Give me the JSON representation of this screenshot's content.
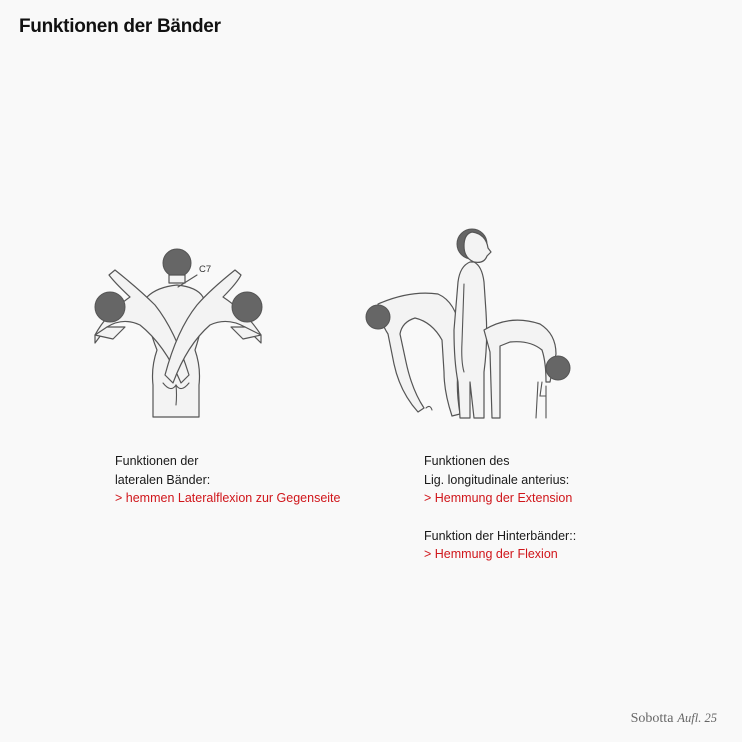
{
  "title": "Funktionen der Bänder",
  "figure_left": {
    "label_c7": "C7"
  },
  "caption_left": {
    "line1": "Funktionen der",
    "line2": "lateralen Bänder:",
    "line3": "> hemmen Lateralflexion zur Gegenseite"
  },
  "caption_right": {
    "block1": {
      "line1": "Funktionen des",
      "line2": "Lig. longitudinale anterius:",
      "line3": "> Hemmung der Extension"
    },
    "block2": {
      "line1": "Funktion der Hinterbänder::",
      "line2": "> Hemmung der Flexion"
    }
  },
  "footer": {
    "brand": "Sobotta",
    "edition": "Aufl. 25"
  },
  "colors": {
    "accent_red": "#d0161b",
    "text": "#1a1a1a",
    "background": "#f9f9f9",
    "head_gray": "#666666"
  }
}
